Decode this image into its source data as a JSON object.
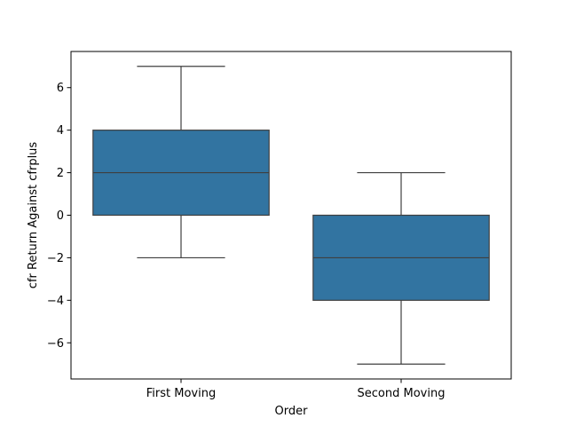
{
  "chart_data": {
    "type": "box",
    "title": "",
    "xlabel": "Order",
    "ylabel": "cfr Return Against cfrplus",
    "ylim": [
      -7.7,
      7.7
    ],
    "yticks": [
      -6,
      -4,
      -2,
      0,
      2,
      4,
      6
    ],
    "ytick_labels": [
      "−6",
      "−4",
      "−2",
      "0",
      "2",
      "4",
      "6"
    ],
    "categories": [
      "First Moving",
      "Second Moving"
    ],
    "boxes": [
      {
        "category": "First Moving",
        "whisker_low": -2,
        "q1": 0,
        "median": 2,
        "q3": 4,
        "whisker_high": 7
      },
      {
        "category": "Second Moving",
        "whisker_low": -7,
        "q1": -4,
        "median": -2,
        "q3": 0,
        "whisker_high": 2
      }
    ],
    "box_color": "#3274a1",
    "line_color": "#3f3f3f",
    "grid": false,
    "legend": "none"
  }
}
